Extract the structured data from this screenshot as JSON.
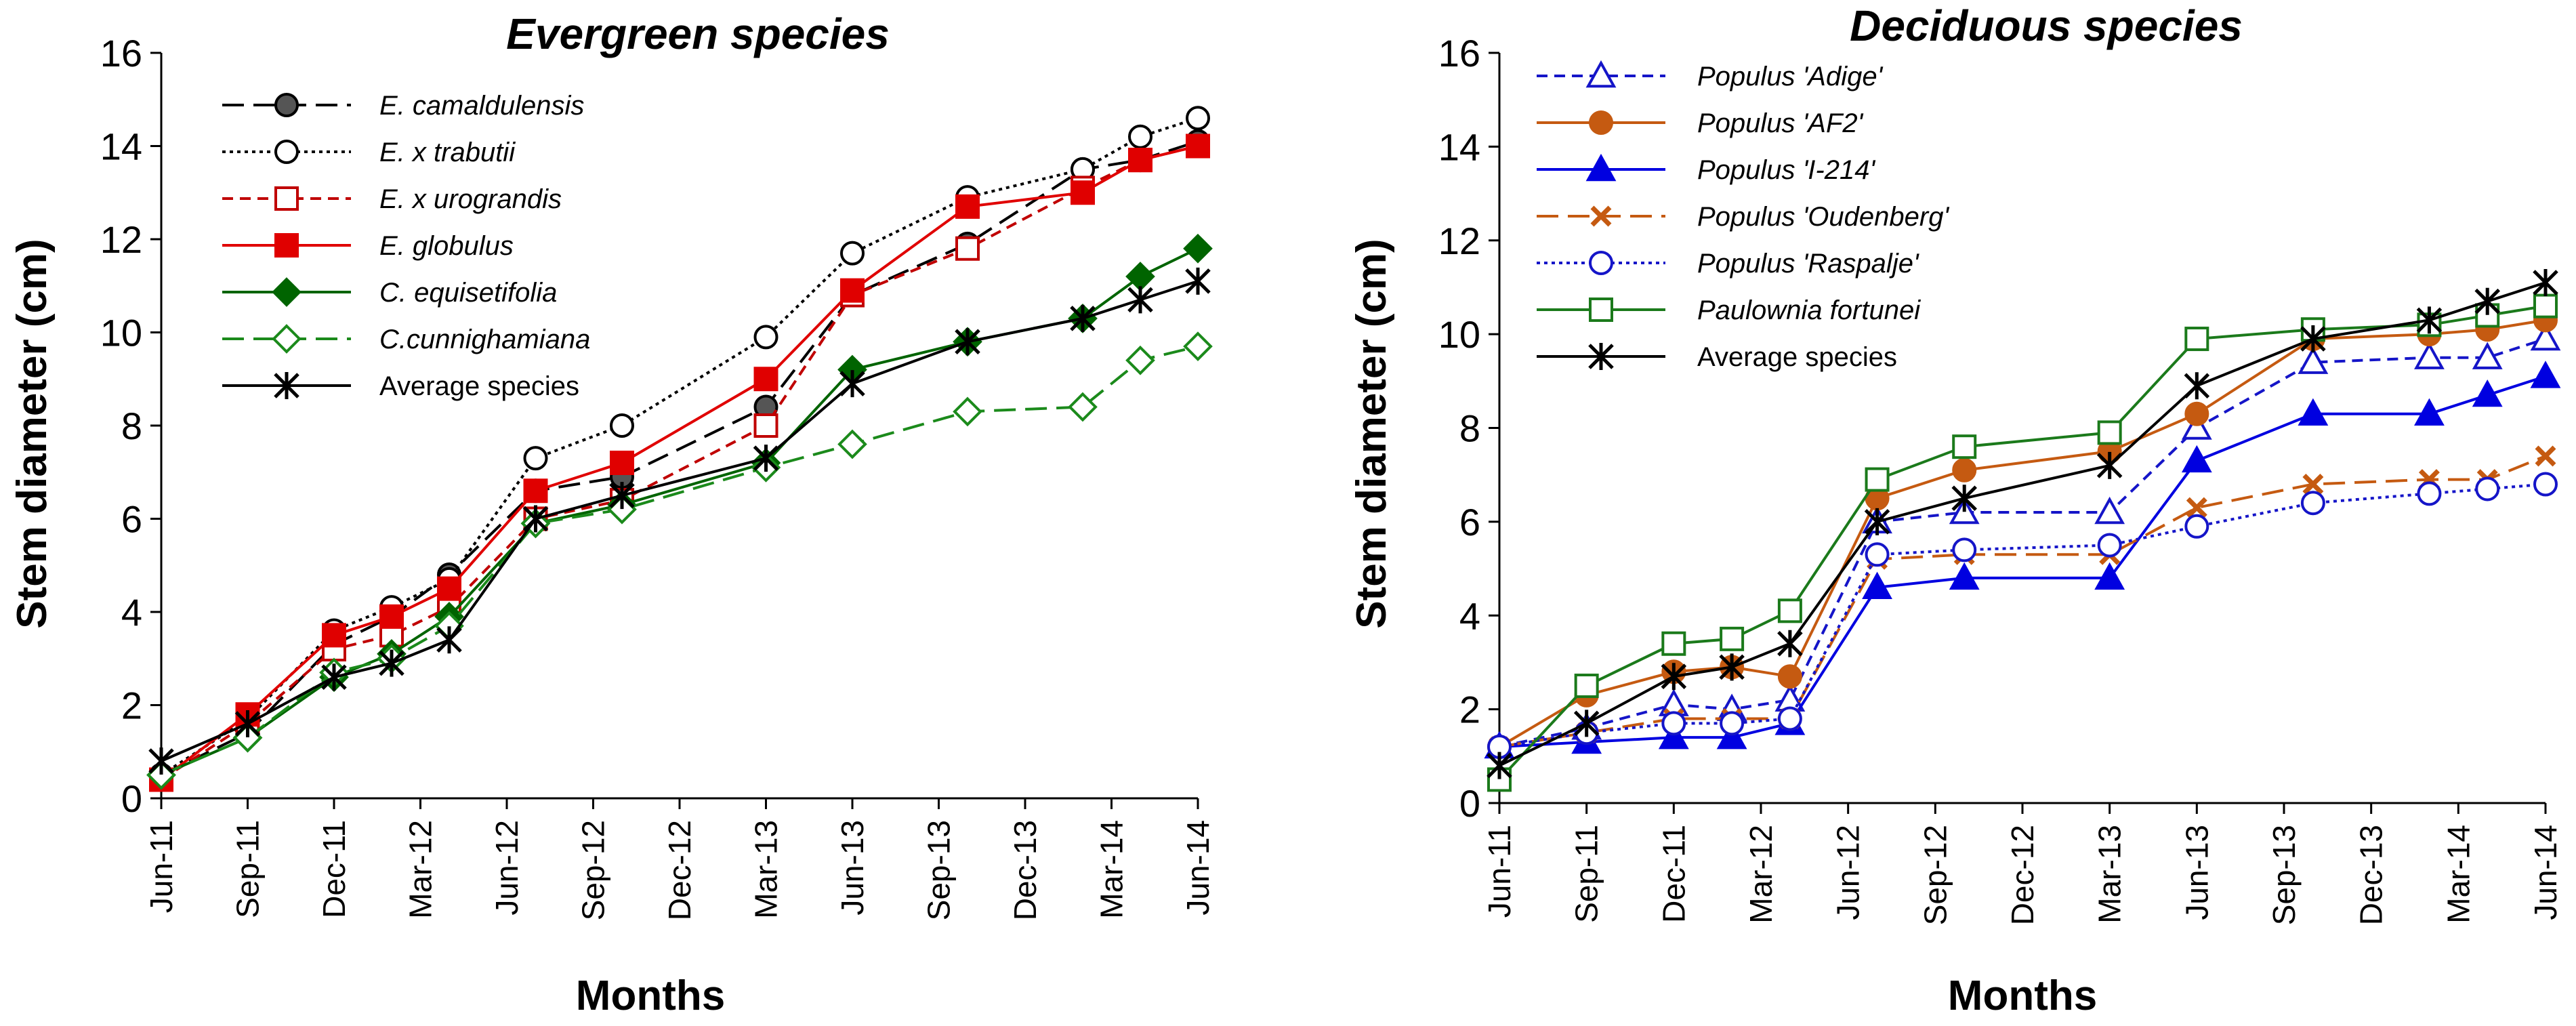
{
  "chart_data": [
    {
      "type": "line",
      "title": "Evergreen species",
      "xlabel": "Months",
      "ylabel": "Stem diameter (cm)",
      "ylim": [
        0,
        16
      ],
      "yticks": [
        "0",
        "2",
        "4",
        "6",
        "8",
        "10",
        "12",
        "14",
        "16"
      ],
      "month_ticks": [
        "Jun-11",
        "Sep-11",
        "Dec-11",
        "Mar-12",
        "Jun-12",
        "Sep-12",
        "Dec-12",
        "Mar-13",
        "Jun-13",
        "Sep-13",
        "Dec-13",
        "Mar-14",
        "Jun-14"
      ],
      "x": [
        0,
        3,
        6,
        8,
        10,
        13,
        16,
        21,
        24,
        28,
        32,
        34,
        36
      ],
      "legend_position": "top-left",
      "series": [
        {
          "name": "E. camaldulensis",
          "color": "#000000",
          "marker": "circle-filled",
          "marker_fill": "#555555",
          "dash": "long-dash",
          "values": [
            0.5,
            1.4,
            3.3,
            3.9,
            4.8,
            6.6,
            6.9,
            8.4,
            10.8,
            11.9,
            13.5,
            13.7,
            14.1
          ]
        },
        {
          "name": "E. x trabutii",
          "color": "#000000",
          "marker": "circle-open",
          "dash": "dot",
          "values": [
            0.5,
            1.7,
            3.6,
            4.1,
            4.7,
            7.3,
            8.0,
            9.9,
            11.7,
            12.9,
            13.5,
            14.2,
            14.6
          ]
        },
        {
          "name": "E. x urograndis",
          "color": "#c00000",
          "marker": "square-open",
          "dash": "short-dash",
          "values": [
            0.4,
            1.6,
            3.2,
            3.5,
            4.1,
            6.0,
            6.4,
            8.0,
            10.8,
            11.8,
            13.1,
            13.7,
            14.0
          ]
        },
        {
          "name": "E. globulus",
          "color": "#e00000",
          "marker": "square-filled",
          "dash": "solid",
          "values": [
            0.4,
            1.8,
            3.5,
            3.9,
            4.5,
            6.6,
            7.2,
            9.0,
            10.9,
            12.7,
            13.0,
            13.7,
            14.0
          ]
        },
        {
          "name": "C. equisetifolia",
          "color": "#006400",
          "marker": "diamond-filled",
          "dash": "solid",
          "values": [
            0.5,
            1.3,
            2.6,
            3.1,
            3.9,
            5.9,
            6.3,
            7.2,
            9.2,
            9.8,
            10.3,
            11.2,
            11.8
          ]
        },
        {
          "name": "C.cunnighamiana",
          "color": "#1b8a1b",
          "marker": "diamond-open",
          "dash": "long-dash",
          "values": [
            0.5,
            1.3,
            2.7,
            3.0,
            3.7,
            5.9,
            6.2,
            7.1,
            7.6,
            8.3,
            8.4,
            9.4,
            9.7
          ]
        },
        {
          "name": "Average species",
          "color": "#000000",
          "marker": "asterisk",
          "dash": "solid",
          "values": [
            0.8,
            1.6,
            2.6,
            2.9,
            3.4,
            6.0,
            6.5,
            7.3,
            8.9,
            9.8,
            10.3,
            10.7,
            11.1
          ]
        }
      ]
    },
    {
      "type": "line",
      "title": "Deciduous species",
      "xlabel": "Months",
      "ylabel": "Stem diameter (cm)",
      "ylim": [
        0,
        16
      ],
      "yticks": [
        "0",
        "2",
        "4",
        "6",
        "8",
        "10",
        "12",
        "14",
        "16"
      ],
      "month_ticks": [
        "Jun-11",
        "Sep-11",
        "Dec-11",
        "Mar-12",
        "Jun-12",
        "Sep-12",
        "Dec-12",
        "Mar-13",
        "Jun-13",
        "Sep-13",
        "Dec-13",
        "Mar-14",
        "Jun-14"
      ],
      "x": [
        0,
        3,
        6,
        8,
        10,
        13,
        16,
        21,
        24,
        28,
        32,
        34,
        36
      ],
      "legend_position": "top-left",
      "series": [
        {
          "name": "Populus 'Adige'",
          "color": "#1515c8",
          "marker": "triangle-open",
          "dash": "short-dash",
          "values": [
            1.2,
            1.6,
            2.1,
            2.0,
            2.2,
            6.0,
            6.2,
            6.2,
            8.0,
            9.4,
            9.5,
            9.5,
            9.9
          ]
        },
        {
          "name": "Populus 'AF2'",
          "color": "#c55a11",
          "marker": "circle-filled",
          "marker_fill": "#c55a11",
          "dash": "solid",
          "values": [
            1.2,
            2.3,
            2.8,
            2.9,
            2.7,
            6.5,
            7.1,
            7.5,
            8.3,
            9.9,
            10.0,
            10.1,
            10.3
          ]
        },
        {
          "name": "Populus 'I-214'",
          "color": "#0000e0",
          "marker": "triangle-filled",
          "dash": "solid",
          "values": [
            1.2,
            1.3,
            1.4,
            1.4,
            1.7,
            4.6,
            4.8,
            4.8,
            7.3,
            8.3,
            8.3,
            8.7,
            9.1
          ]
        },
        {
          "name": "Populus 'Oudenberg'",
          "color": "#c55a11",
          "marker": "x",
          "dash": "long-dash",
          "values": [
            1.2,
            1.5,
            1.8,
            1.8,
            1.8,
            5.2,
            5.3,
            5.3,
            6.3,
            6.8,
            6.9,
            6.9,
            7.4
          ]
        },
        {
          "name": "Populus 'Raspalje'",
          "color": "#1515c8",
          "marker": "circle-open",
          "dash": "dot",
          "values": [
            1.2,
            1.5,
            1.7,
            1.7,
            1.8,
            5.3,
            5.4,
            5.5,
            5.9,
            6.4,
            6.6,
            6.7,
            6.8
          ]
        },
        {
          "name": "Paulownia fortunei",
          "color": "#1b7a1b",
          "marker": "square-open",
          "dash": "solid",
          "values": [
            0.5,
            2.5,
            3.4,
            3.5,
            4.1,
            6.9,
            7.6,
            7.9,
            9.9,
            10.1,
            10.2,
            10.4,
            10.6
          ]
        },
        {
          "name": "Average species",
          "color": "#000000",
          "marker": "asterisk",
          "dash": "solid",
          "values": [
            0.8,
            1.7,
            2.7,
            2.9,
            3.4,
            6.0,
            6.5,
            7.2,
            8.9,
            9.9,
            10.3,
            10.7,
            11.1
          ]
        }
      ]
    }
  ]
}
